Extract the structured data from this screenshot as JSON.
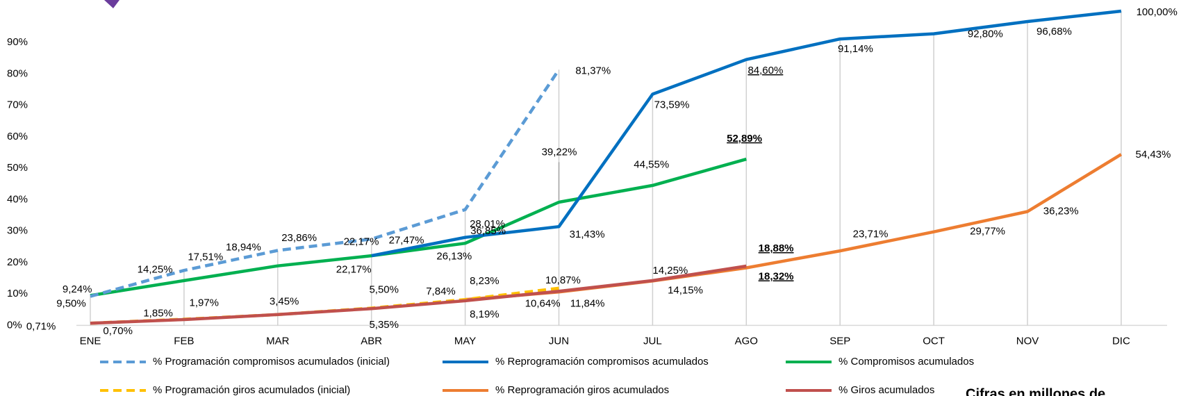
{
  "chart_data": {
    "type": "line",
    "categories": [
      "ENE",
      "FEB",
      "MAR",
      "ABR",
      "MAY",
      "JUN",
      "JUL",
      "AGO",
      "SEP",
      "OCT",
      "NOV",
      "DIC"
    ],
    "ylim": [
      0,
      100
    ],
    "yticks": [
      {
        "value": 0,
        "label": "0%"
      },
      {
        "value": 10,
        "label": "10%"
      },
      {
        "value": 20,
        "label": "20%"
      },
      {
        "value": 30,
        "label": "30%"
      },
      {
        "value": 40,
        "label": "40%"
      },
      {
        "value": 50,
        "label": "50%"
      },
      {
        "value": 60,
        "label": "60%"
      },
      {
        "value": 70,
        "label": "70%"
      },
      {
        "value": 80,
        "label": "80%"
      },
      {
        "value": 90,
        "label": "90%"
      }
    ],
    "series": [
      {
        "name": "% Programación compromisos acumulados (inicial)",
        "color": "#5b9bd5",
        "dashed": true,
        "values": [
          9.24,
          17.51,
          23.86,
          27.47,
          36.85,
          81.37,
          null,
          null,
          null,
          null,
          null,
          null
        ],
        "value_labels": [
          "9,24%",
          "17,51%",
          "23,86%",
          "27,47%",
          "36,85%",
          "81,37%",
          null,
          null,
          null,
          null,
          null,
          null
        ]
      },
      {
        "name": "% Reprogramación compromisos acumulados",
        "color": "#0070c0",
        "values": [
          null,
          null,
          null,
          22.17,
          28.01,
          31.43,
          73.59,
          84.6,
          91.14,
          92.8,
          96.68,
          100.0
        ],
        "value_labels": [
          null,
          null,
          null,
          "22,17%",
          "28,01%",
          "31,43%",
          "73,59%",
          "84,60%",
          "91,14%",
          "92,80%",
          "96,68%",
          "100,00%"
        ]
      },
      {
        "name": "% Compromisos acumulados",
        "color": "#00b050",
        "values": [
          9.5,
          14.25,
          18.94,
          22.17,
          26.13,
          39.22,
          44.55,
          52.89,
          null,
          null,
          null,
          null
        ],
        "value_labels": [
          "9,50%",
          "14,25%",
          "18,94%",
          "22,17%",
          "26,13%",
          "39,22%",
          "44,55%",
          "52,89%",
          null,
          null,
          null,
          null
        ]
      },
      {
        "name": "% Programación giros acumulados (inicial)",
        "color": "#ffc000",
        "dashed": true,
        "values": [
          0.71,
          1.97,
          3.45,
          5.5,
          8.23,
          11.84,
          null,
          null,
          null,
          null,
          null,
          null
        ],
        "value_labels": [
          "0,71%",
          "1,97%",
          null,
          "5,50%",
          "8,23%",
          "11,84%",
          null,
          null,
          null,
          null,
          null,
          null
        ]
      },
      {
        "name": "% Reprogramación giros acumulados",
        "color": "#ed7d31",
        "values": [
          null,
          null,
          null,
          null,
          8.19,
          10.64,
          14.15,
          18.32,
          23.71,
          29.77,
          36.23,
          54.43
        ],
        "value_labels": [
          null,
          null,
          null,
          null,
          "8,19%",
          "10,64%",
          "14,15%",
          "18,32%",
          "23,71%",
          "29,77%",
          "36,23%",
          "54,43%"
        ]
      },
      {
        "name": "% Giros acumulados",
        "color": "#c0504d",
        "values": [
          0.7,
          1.85,
          3.45,
          5.35,
          7.84,
          10.87,
          14.25,
          18.88,
          null,
          null,
          null,
          null
        ],
        "value_labels": [
          "0,70%",
          "1,85%",
          "3,45%",
          "5,35%",
          "7,84%",
          "10,87%",
          "14,25%",
          "18,88%",
          null,
          null,
          null,
          null
        ]
      }
    ],
    "note": "Cifras en millones de"
  }
}
